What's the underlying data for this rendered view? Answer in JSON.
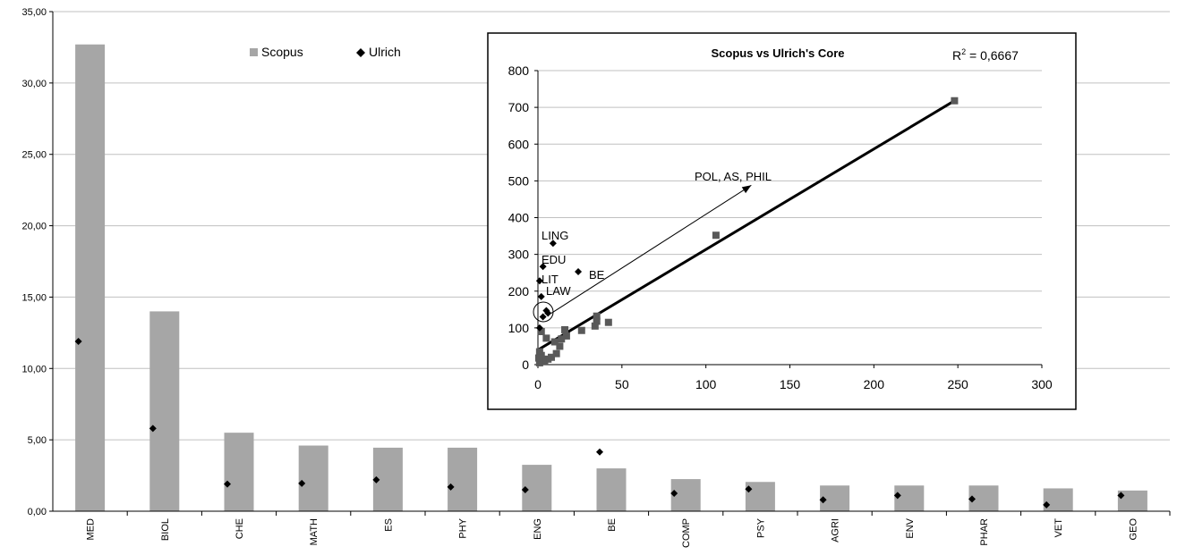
{
  "colors": {
    "bar": "#a6a6a6",
    "diamond": "#000000",
    "scatter_point": "#595959",
    "axis": "#000000",
    "gridline": "#c0c0c0"
  },
  "icons": {
    "legend_scopus": "gray-square-icon",
    "legend_ulrich": "black-diamond-icon"
  },
  "chart_data": [
    {
      "type": "bar",
      "title": "",
      "xlabel": "",
      "ylabel": "",
      "ylim": [
        0,
        35
      ],
      "y_ticks": [
        "0,00",
        "5,00",
        "10,00",
        "15,00",
        "20,00",
        "25,00",
        "30,00",
        "35,00"
      ],
      "grid": true,
      "legend_position": "top-left",
      "categories": [
        "MED",
        "BIOL",
        "CHE",
        "MATH",
        "ES",
        "PHY",
        "ENG",
        "BE",
        "COMP",
        "PSY",
        "AGRI",
        "ENV",
        "PHAR",
        "VET",
        "GEO"
      ],
      "series": [
        {
          "name": "Scopus",
          "type": "bar",
          "values": [
            32.7,
            14.0,
            5.5,
            4.6,
            4.45,
            4.45,
            3.25,
            3.0,
            2.25,
            2.05,
            1.8,
            1.8,
            1.8,
            1.6,
            1.45
          ]
        },
        {
          "name": "Ulrich",
          "type": "marker",
          "values": [
            11.9,
            5.8,
            1.9,
            1.95,
            2.2,
            1.7,
            1.5,
            4.15,
            1.25,
            1.55,
            0.8,
            1.1,
            0.85,
            0.45,
            1.1
          ]
        }
      ]
    },
    {
      "type": "scatter",
      "title": "Scopus vs Ulrich's Core",
      "r2_label": "R",
      "r2_sup": "2",
      "r2_value": " = 0,6667",
      "xlabel": "",
      "ylabel": "",
      "xlim": [
        0,
        300
      ],
      "ylim": [
        0,
        800
      ],
      "x_ticks": [
        "0",
        "50",
        "100",
        "150",
        "200",
        "250",
        "300"
      ],
      "y_ticks": [
        "0",
        "100",
        "200",
        "300",
        "400",
        "500",
        "600",
        "700",
        "800"
      ],
      "grid": true,
      "trendline": {
        "x": [
          0,
          248
        ],
        "y": [
          40,
          718
        ]
      },
      "squares": [
        {
          "x": 248,
          "y": 718
        },
        {
          "x": 106,
          "y": 352
        },
        {
          "x": 42,
          "y": 115
        },
        {
          "x": 35,
          "y": 132
        },
        {
          "x": 35,
          "y": 118
        },
        {
          "x": 34,
          "y": 105
        },
        {
          "x": 26,
          "y": 93
        },
        {
          "x": 17,
          "y": 78
        },
        {
          "x": 16,
          "y": 95
        },
        {
          "x": 14,
          "y": 70
        },
        {
          "x": 13,
          "y": 50
        },
        {
          "x": 11,
          "y": 30
        },
        {
          "x": 10,
          "y": 62
        },
        {
          "x": 8,
          "y": 20
        },
        {
          "x": 6,
          "y": 15
        },
        {
          "x": 5,
          "y": 72
        },
        {
          "x": 4,
          "y": 8
        },
        {
          "x": 3,
          "y": 12
        },
        {
          "x": 2,
          "y": 25
        },
        {
          "x": 2,
          "y": 90
        },
        {
          "x": 1,
          "y": 5
        },
        {
          "x": 1,
          "y": 35
        },
        {
          "x": 0.5,
          "y": 18
        }
      ],
      "diamonds": [
        {
          "x": 9,
          "y": 330
        },
        {
          "x": 3,
          "y": 267
        },
        {
          "x": 24,
          "y": 253
        },
        {
          "x": 1,
          "y": 228
        },
        {
          "x": 2,
          "y": 185
        },
        {
          "x": 5,
          "y": 147
        },
        {
          "x": 6,
          "y": 140
        },
        {
          "x": 3,
          "y": 130
        },
        {
          "x": 1,
          "y": 100
        }
      ],
      "annotations": [
        "LING",
        "EDU",
        "LIT",
        "BE",
        "LAW",
        "POL, AS, PHIL"
      ],
      "arrow": {
        "from": [
          8,
          140
        ],
        "to": [
          127,
          488
        ]
      }
    }
  ]
}
